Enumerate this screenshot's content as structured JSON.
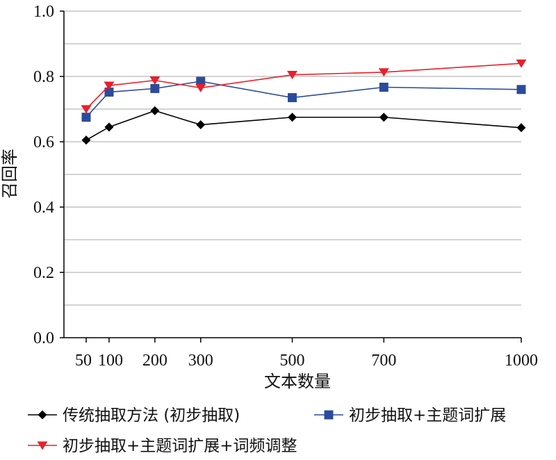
{
  "chart_data": {
    "type": "line",
    "x": [
      50,
      100,
      200,
      300,
      500,
      700,
      1000
    ],
    "x_tick_labels": [
      "50",
      "100",
      "200",
      "300",
      "500",
      "700",
      "1000"
    ],
    "xlabel": "文本数量",
    "ylabel": "召回率",
    "ylim": [
      0.0,
      1.0
    ],
    "y_ticks": [
      0.0,
      0.2,
      0.4,
      0.6,
      0.8,
      1.0
    ],
    "y_tick_labels": [
      "0.0",
      "0.2",
      "0.4",
      "0.6",
      "0.8",
      "1.0"
    ],
    "grid": true,
    "legend_position": "bottom",
    "series": [
      {
        "name": "传统抽取方法 (初步抽取)",
        "color": "#000000",
        "marker": "diamond",
        "values": [
          0.605,
          0.645,
          0.695,
          0.652,
          0.675,
          0.675,
          0.643
        ]
      },
      {
        "name": "初步抽取+主题词扩展",
        "color": "#2B4C9B",
        "marker": "square",
        "values": [
          0.675,
          0.752,
          0.763,
          0.785,
          0.735,
          0.767,
          0.76
        ]
      },
      {
        "name": "初步抽取+主题词扩展+词频调整",
        "color": "#E8202A",
        "marker": "triangle-down",
        "values": [
          0.7,
          0.772,
          0.788,
          0.765,
          0.805,
          0.813,
          0.84
        ]
      }
    ]
  }
}
